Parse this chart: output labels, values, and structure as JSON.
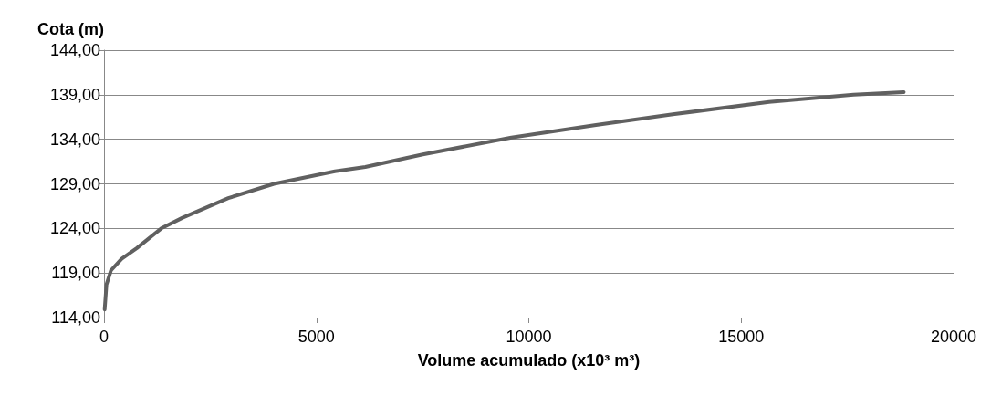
{
  "chart_data": {
    "type": "line",
    "ylabel": "Cota (m)",
    "xlabel": "Volume acumulado (x10³ m³)",
    "x": [
      15,
      57,
      165,
      415,
      774,
      1348,
      1849,
      2925,
      4000,
      5434,
      6150,
      7505,
      9591,
      11581,
      13391,
      15656,
      17645,
      18828
    ],
    "series": [
      {
        "color": "#606060",
        "values": [
          114.9,
          117.7,
          119.3,
          120.6,
          121.8,
          124.0,
          125.2,
          127.4,
          129.0,
          130.4,
          130.9,
          132.3,
          134.2,
          135.6,
          136.8,
          138.2,
          139.0,
          139.3
        ]
      }
    ],
    "xlim": [
      0,
      20000
    ],
    "xticks": [
      0,
      5000,
      10000,
      15000,
      20000
    ],
    "ylim": [
      114,
      144
    ],
    "yticks": [
      {
        "value": 114,
        "label": "114,00"
      },
      {
        "value": 119,
        "label": "119,00"
      },
      {
        "value": 124,
        "label": "124,00"
      },
      {
        "value": 129,
        "label": "129,00"
      },
      {
        "value": 134,
        "label": "134,00"
      },
      {
        "value": 139,
        "label": "139,00"
      },
      {
        "value": 144,
        "label": "144,00"
      }
    ],
    "grid": "y",
    "marker": "none",
    "line_style": "solid"
  }
}
